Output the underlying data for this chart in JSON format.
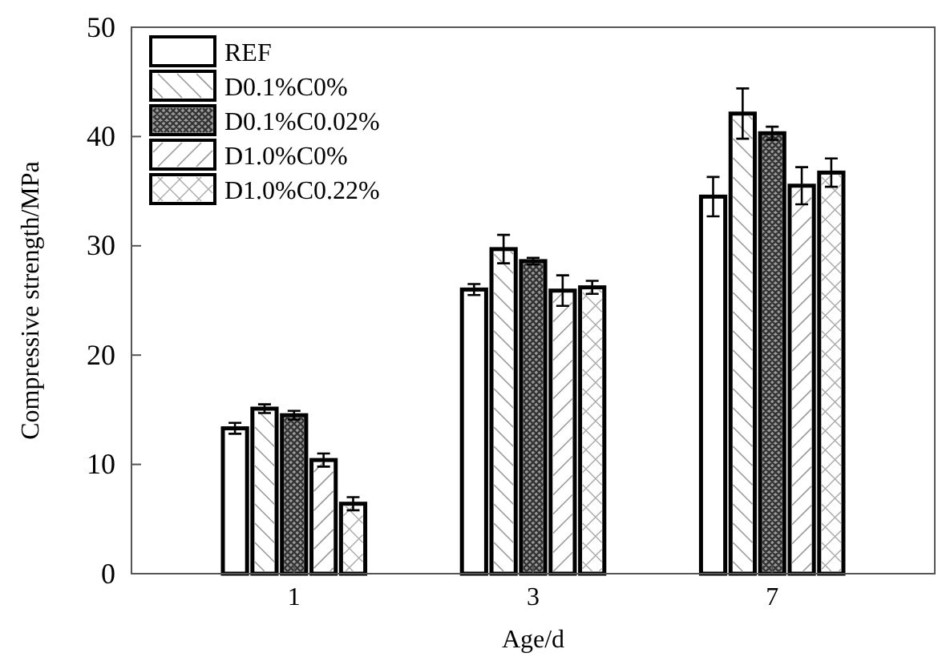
{
  "chart_data": {
    "type": "bar",
    "xlabel": "Age/d",
    "ylabel": "Compressive strength/MPa",
    "categories": [
      "1",
      "3",
      "7"
    ],
    "ylim": [
      0,
      50
    ],
    "yticks": [
      0,
      10,
      20,
      30,
      40,
      50
    ],
    "grid": false,
    "legend": "top left",
    "series": [
      {
        "name": "REF",
        "color": "#ffffff",
        "values": [
          13.3,
          26.0,
          34.5
        ],
        "errors": [
          0.5,
          0.5,
          1.8
        ]
      },
      {
        "name": "D0.1%C0%",
        "color": "#ffffff",
        "values": [
          15.1,
          29.7,
          42.1
        ],
        "errors": [
          0.4,
          1.3,
          2.3
        ]
      },
      {
        "name": "D0.1%C0.02%",
        "color": "#9a9a9a",
        "values": [
          14.5,
          28.6,
          40.3
        ],
        "errors": [
          0.4,
          0.3,
          0.6
        ]
      },
      {
        "name": "D1.0%C0%",
        "color": "#ffffff",
        "values": [
          10.4,
          25.9,
          35.5
        ],
        "errors": [
          0.6,
          1.4,
          1.7
        ]
      },
      {
        "name": "D1.0%C0.22%",
        "color": "#ffffff",
        "values": [
          6.4,
          26.2,
          36.7
        ],
        "errors": [
          0.6,
          0.6,
          1.3
        ]
      }
    ]
  }
}
